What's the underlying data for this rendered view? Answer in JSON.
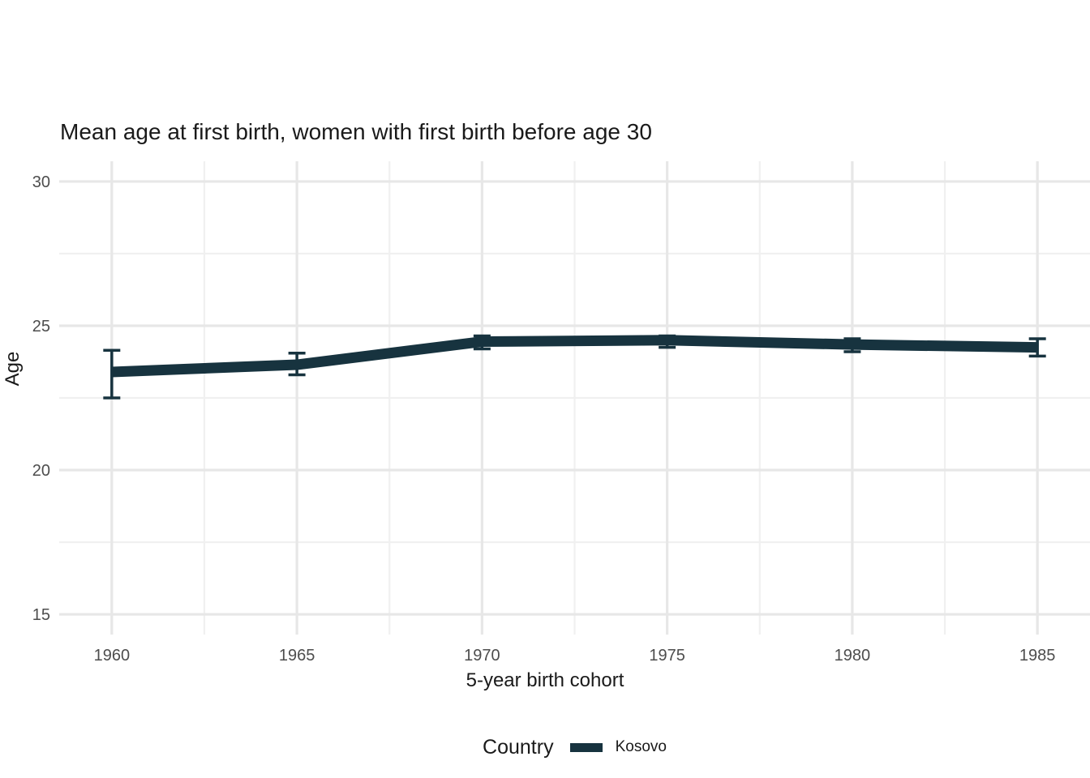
{
  "chart_data": {
    "type": "line",
    "title": "Mean age at first birth, women with first birth before age 30",
    "xlabel": "5-year birth cohort",
    "ylabel": "Age",
    "x": [
      1960,
      1965,
      1970,
      1975,
      1980,
      1985
    ],
    "x_tick_labels": [
      "1960",
      "1965",
      "1970",
      "1975",
      "1980",
      "1985"
    ],
    "y_ticks": [
      15,
      20,
      25,
      30
    ],
    "y_tick_labels": [
      "15",
      "20",
      "25",
      "30"
    ],
    "x_minor_ticks": [
      1962.5,
      1967.5,
      1972.5,
      1977.5,
      1982.5
    ],
    "y_minor_ticks": [
      17.5,
      22.5,
      27.5
    ],
    "xlim": [
      1958.58,
      1986.42
    ],
    "ylim": [
      14.3,
      30.7
    ],
    "grid": "on",
    "legend_position": "bottom",
    "series": [
      {
        "name": "Kosovo",
        "color": "#17333f",
        "values": [
          23.4,
          23.65,
          24.45,
          24.5,
          24.35,
          24.25
        ],
        "ci_low": [
          22.5,
          23.3,
          24.2,
          24.25,
          24.1,
          23.95
        ],
        "ci_high": [
          24.15,
          24.05,
          24.65,
          24.65,
          24.55,
          24.55
        ]
      }
    ]
  },
  "legend": {
    "title": "Country",
    "items": [
      {
        "label": "Kosovo",
        "color": "#17333f"
      }
    ]
  },
  "colors": {
    "background": "#ffffff",
    "grid_major": "#e7e7e7",
    "grid_minor": "#f0f0f0",
    "tick_text": "#4d4d4d",
    "title_text": "#1a1a1a",
    "series_line": "#17333f"
  }
}
